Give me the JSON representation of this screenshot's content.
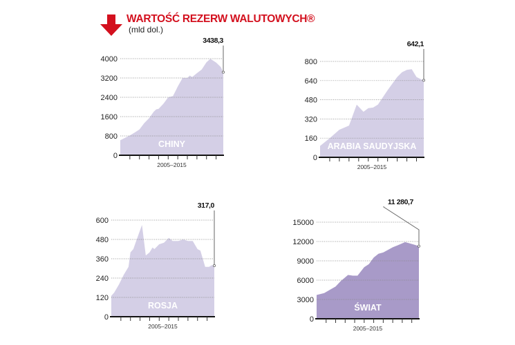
{
  "header": {
    "title": "WARTOŚĆ REZERW WALUTOWYCH®",
    "subtitle": "(mld dol.)",
    "icon": "down-arrow-icon",
    "accent_color": "#d3101e"
  },
  "chart_data": [
    {
      "type": "area",
      "title": "CHINY",
      "xlabel": "2005–2015",
      "ylim": [
        0,
        4000
      ],
      "yticks": [
        "0",
        "800",
        "1600",
        "2400",
        "3200",
        "4000"
      ],
      "grid": true,
      "color": "#d4cfe6",
      "last_value_label": "3438,3",
      "x": [
        2005.0,
        2005.5,
        2006.0,
        2006.5,
        2007.0,
        2007.5,
        2008.0,
        2008.5,
        2008.75,
        2009.0,
        2009.5,
        2010.0,
        2010.5,
        2011.0,
        2011.5,
        2012.0,
        2012.25,
        2012.5,
        2013.0,
        2013.5,
        2014.0,
        2014.4,
        2015.0,
        2015.5,
        2015.75
      ],
      "values": [
        620,
        720,
        820,
        940,
        1070,
        1330,
        1530,
        1810,
        1900,
        1920,
        2130,
        2400,
        2450,
        2850,
        3200,
        3200,
        3300,
        3240,
        3400,
        3550,
        3850,
        3990,
        3840,
        3650,
        3438.3
      ]
    },
    {
      "type": "area",
      "title": "ARABIA SAUDYJSKA",
      "xlabel": "2005–2015",
      "ylim": [
        0,
        800
      ],
      "yticks": [
        "0",
        "160",
        "320",
        "480",
        "640",
        "800"
      ],
      "grid": true,
      "color": "#d4cfe6",
      "last_value_label": "642,1",
      "x": [
        2005.0,
        2006.0,
        2007.0,
        2008.0,
        2008.8,
        2009.5,
        2010.0,
        2010.5,
        2011.0,
        2012.0,
        2013.0,
        2013.5,
        2014.0,
        2014.5,
        2015.0,
        2015.5,
        2015.75
      ],
      "values": [
        95,
        160,
        230,
        265,
        440,
        380,
        410,
        415,
        440,
        560,
        670,
        710,
        730,
        735,
        670,
        650,
        642.1
      ]
    },
    {
      "type": "area",
      "title": "ROSJA",
      "xlabel": "2005–2015",
      "ylim": [
        0,
        600
      ],
      "yticks": [
        "0",
        "120",
        "240",
        "360",
        "480",
        "600"
      ],
      "grid": true,
      "color": "#d4cfe6",
      "last_value_label": "317,0",
      "x": [
        2005.0,
        2005.3,
        2005.8,
        2006.3,
        2006.8,
        2007.0,
        2007.3,
        2007.6,
        2008.2,
        2008.6,
        2009.0,
        2009.3,
        2009.5,
        2010.0,
        2010.5,
        2011.0,
        2011.4,
        2012.0,
        2012.5,
        2013.0,
        2013.5,
        2014.0,
        2014.3,
        2014.8,
        2015.2,
        2015.5,
        2015.75
      ],
      "values": [
        130,
        150,
        200,
        260,
        310,
        400,
        420,
        470,
        570,
        380,
        400,
        430,
        420,
        450,
        460,
        490,
        470,
        470,
        480,
        470,
        470,
        420,
        410,
        310,
        310,
        320,
        317.0
      ]
    },
    {
      "type": "area",
      "title": "ŚWIAT",
      "xlabel": "2005–2015",
      "ylim": [
        0,
        15000
      ],
      "yticks": [
        "0",
        "3000",
        "6000",
        "9000",
        "12000",
        "15000"
      ],
      "grid": true,
      "color": "#a89ac8",
      "last_value_label": "11 280,7",
      "x": [
        2005.0,
        2005.8,
        2006.5,
        2007.0,
        2007.5,
        2008.3,
        2008.8,
        2009.3,
        2010.0,
        2010.5,
        2011.0,
        2011.5,
        2012.0,
        2012.5,
        2013.0,
        2013.5,
        2014.3,
        2014.8,
        2015.3,
        2015.75
      ],
      "values": [
        3700,
        4000,
        4600,
        5000,
        5800,
        6800,
        6700,
        6700,
        8000,
        8500,
        9500,
        10100,
        10300,
        10700,
        11100,
        11400,
        11900,
        11700,
        11500,
        11280.7
      ]
    }
  ]
}
